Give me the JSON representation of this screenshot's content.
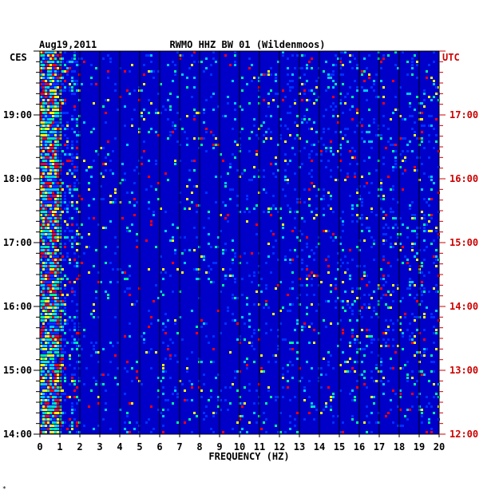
{
  "chart_data": {
    "type": "heatmap",
    "date": "Aug19,2011",
    "title": "RWMO HHZ BW 01 (Wildenmoos)",
    "xlabel": "FREQUENCY (HZ)",
    "left_axis_label": "CES",
    "right_axis_label": "UTC",
    "x": {
      "min": 0,
      "max": 20,
      "ticks": [
        "0",
        "1",
        "2",
        "3",
        "4",
        "5",
        "6",
        "7",
        "8",
        "9",
        "10",
        "11",
        "12",
        "13",
        "14",
        "15",
        "16",
        "17",
        "18",
        "19",
        "20"
      ]
    },
    "left_time_ticks": [
      "19:00",
      "18:00",
      "17:00",
      "16:00",
      "15:00",
      "14:00"
    ],
    "right_time_ticks": [
      "17:00",
      "16:00",
      "15:00",
      "14:00",
      "13:00",
      "12:00"
    ],
    "time_range_hours": 6,
    "colors": {
      "background": "#0000c8",
      "axis_left": "#000000",
      "axis_right": "#cc0000",
      "grid": "#000000"
    },
    "colormap": [
      "#0000a0",
      "#0030ff",
      "#00c8ff",
      "#00ff90",
      "#ffff00",
      "#ff0000"
    ],
    "corner_mark": "*"
  }
}
